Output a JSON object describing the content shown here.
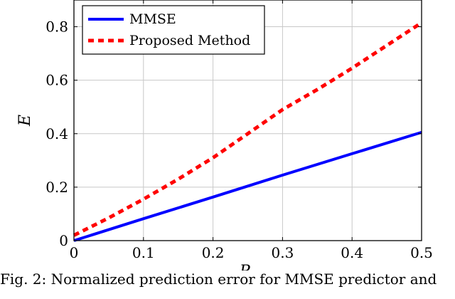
{
  "caption": "Fig. 2: Normalized prediction error for MMSE predictor and",
  "chart_data": {
    "type": "line",
    "xlabel": "P",
    "xlabel_sub": "c",
    "ylabel": "E",
    "xlim": [
      0,
      0.5
    ],
    "ylim": [
      0,
      0.9
    ],
    "xticks": [
      0,
      0.1,
      0.2,
      0.3,
      0.4,
      0.5
    ],
    "xtick_labels": [
      "0",
      "0.1",
      "0.2",
      "0.3",
      "0.4",
      "0.5"
    ],
    "yticks": [
      0,
      0.2,
      0.4,
      0.6,
      0.8
    ],
    "ytick_labels": [
      "0",
      "0.2",
      "0.4",
      "0.6",
      "0.8"
    ],
    "grid": true,
    "legend_position": "top-left",
    "series": [
      {
        "name": "MMSE",
        "color": "#0000ff",
        "style": "solid",
        "x": [
          0,
          0.1,
          0.2,
          0.3,
          0.4,
          0.5
        ],
        "y": [
          0,
          0.082,
          0.163,
          0.245,
          0.325,
          0.405
        ]
      },
      {
        "name": "Proposed Method",
        "color": "#ff0000",
        "style": "dashed",
        "x": [
          0,
          0.05,
          0.1,
          0.15,
          0.2,
          0.25,
          0.3,
          0.35,
          0.4,
          0.45,
          0.5
        ],
        "y": [
          0.02,
          0.085,
          0.155,
          0.23,
          0.31,
          0.4,
          0.49,
          0.565,
          0.645,
          0.73,
          0.815
        ]
      }
    ]
  }
}
